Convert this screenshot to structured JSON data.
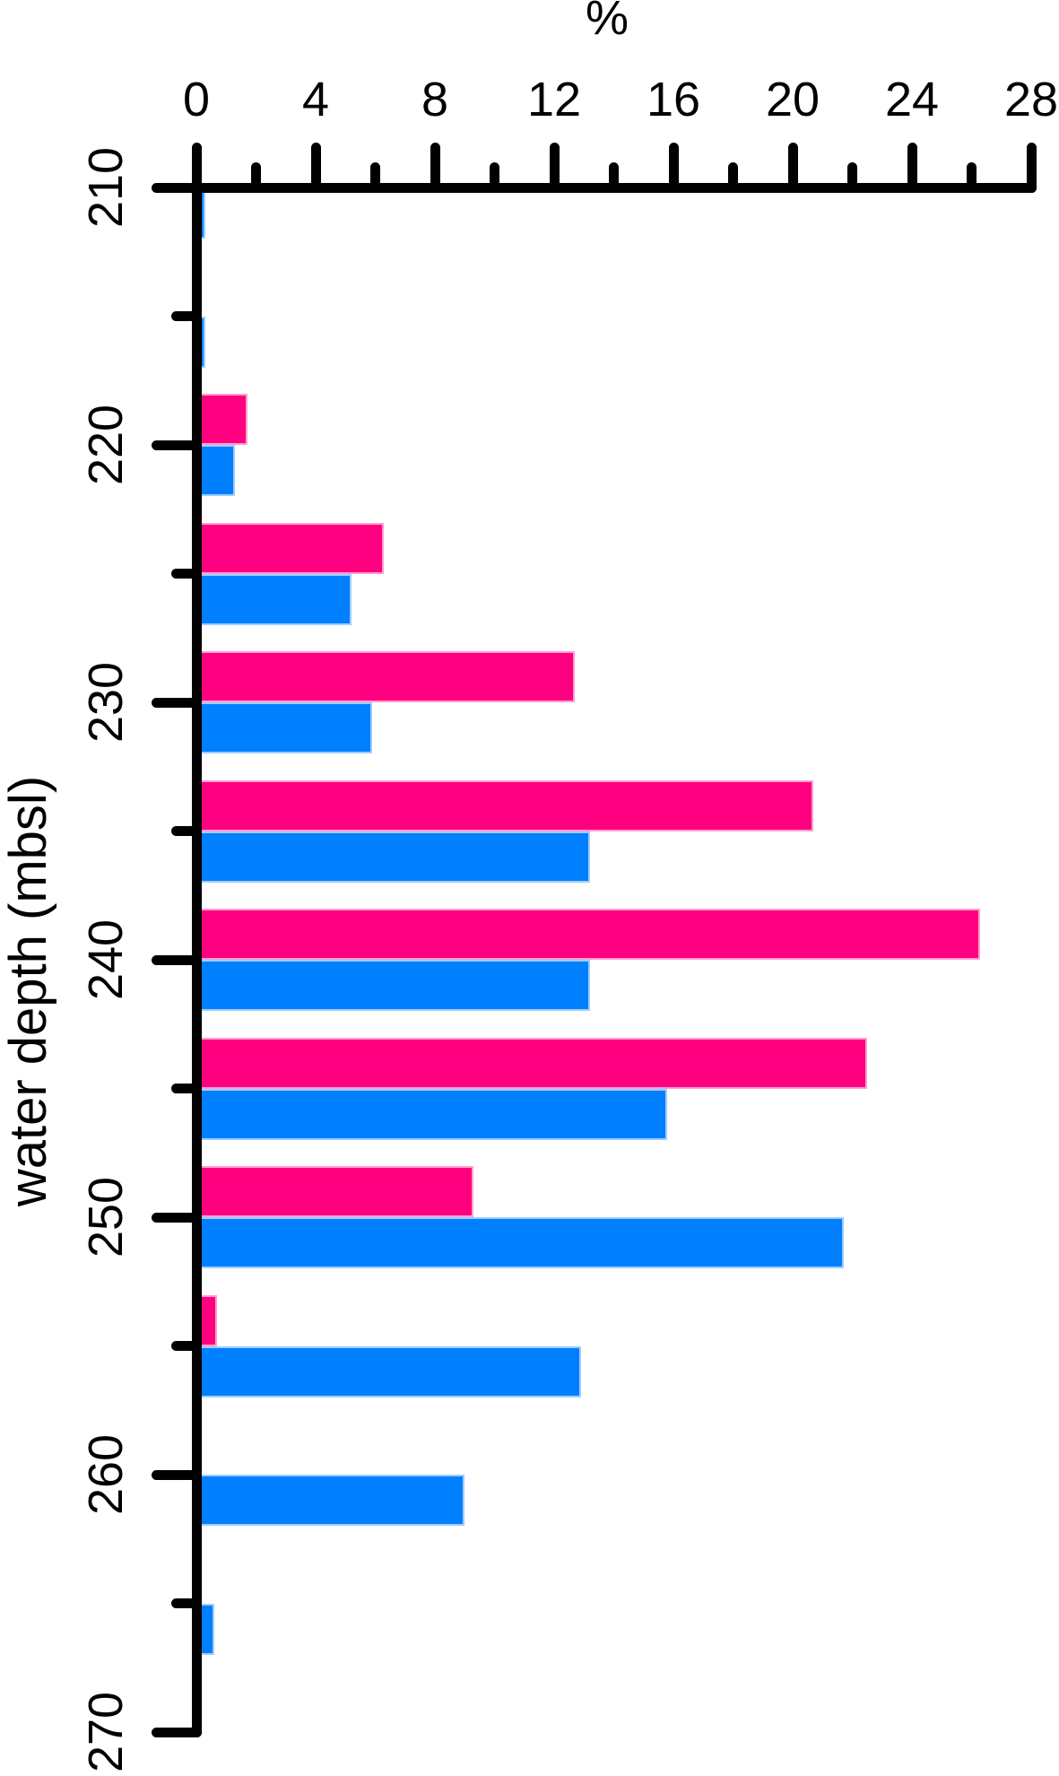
{
  "chart_data": {
    "type": "bar",
    "orientation": "horizontal",
    "title": "",
    "x_axis": {
      "label": "%",
      "min": 0,
      "max": 28,
      "major_tick_step": 4,
      "minor_tick_step": 2,
      "major_tick_labels": [
        "0",
        "4",
        "8",
        "12",
        "16",
        "20",
        "24",
        "28"
      ],
      "position": "top"
    },
    "y_axis": {
      "label": "water depth (mbsl)",
      "min": 210,
      "max": 270,
      "major_tick_step": 10,
      "minor_tick_step": 5,
      "major_tick_labels": [
        "210",
        "220",
        "230",
        "240",
        "250",
        "260",
        "270"
      ],
      "position": "left",
      "direction": "increasing-downward"
    },
    "categories": [
      210,
      215,
      220,
      225,
      230,
      235,
      240,
      245,
      250,
      255,
      260,
      265
    ],
    "series": [
      {
        "name": "magenta-series",
        "color": "#ff0080",
        "border_color": "#ff9ed2",
        "position": "above-tick",
        "values": [
          0,
          0,
          1.7,
          6.3,
          12.7,
          20.7,
          26.3,
          22.5,
          9.3,
          0.7,
          0,
          0
        ]
      },
      {
        "name": "blue-series",
        "color": "#0080ff",
        "border_color": "#9fccff",
        "position": "below-tick",
        "values": [
          0.3,
          0.3,
          1.3,
          5.2,
          5.9,
          13.2,
          13.2,
          15.8,
          21.7,
          12.9,
          9.0,
          0.6
        ]
      }
    ],
    "legend": null,
    "grid": false
  },
  "colors": {
    "axis": "#000000",
    "background": "#ffffff",
    "text": "#000000"
  }
}
